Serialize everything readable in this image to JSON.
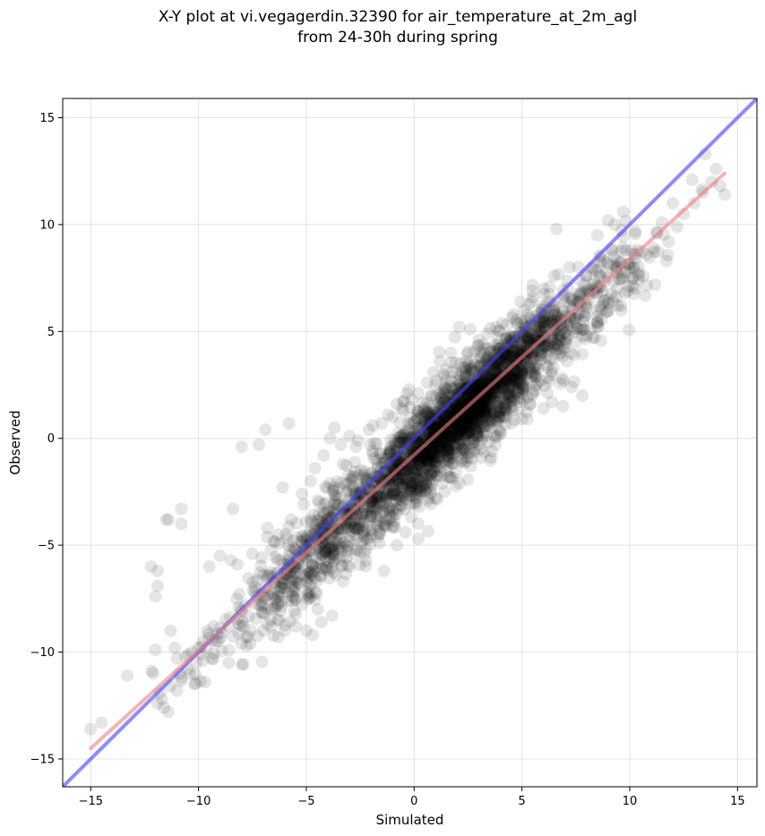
{
  "chart_data": {
    "type": "scatter",
    "title_line1": "X-Y plot at vi.vegagerdin.32390 for air_temperature_at_2m_agl",
    "title_line2": "from 24-30h during spring",
    "xlabel": "Simulated",
    "ylabel": "Observed",
    "xlim": [
      -16.3,
      15.9
    ],
    "ylim": [
      -16.3,
      15.9
    ],
    "xticks": [
      -15,
      -10,
      -5,
      0,
      5,
      10,
      15
    ],
    "yticks": [
      -15,
      -10,
      -5,
      0,
      5,
      10,
      15
    ],
    "xtick_labels": [
      "−15",
      "−10",
      "−5",
      "0",
      "5",
      "10",
      "15"
    ],
    "ytick_labels": [
      "−15",
      "−10",
      "−5",
      "0",
      "5",
      "10",
      "15"
    ],
    "grid": true,
    "point_color": "#000000",
    "point_count_approx": 3000,
    "lines": [
      {
        "kind": "identity",
        "color": "#4040ff",
        "x": [
          -16.3,
          15.9
        ],
        "y": [
          -16.3,
          15.9
        ]
      },
      {
        "kind": "regression",
        "color": "#f08080",
        "x": [
          -15.0,
          14.4
        ],
        "y": [
          -14.5,
          12.4
        ]
      }
    ],
    "points": [
      [
        -15.0,
        -13.6
      ],
      [
        -14.5,
        -13.3
      ],
      [
        -13.3,
        -11.1
      ],
      [
        -12.2,
        -6.0
      ],
      [
        -11.9,
        -6.2
      ],
      [
        -12.0,
        -7.4
      ],
      [
        -11.9,
        -6.9
      ],
      [
        -11.5,
        -3.8
      ],
      [
        -11.4,
        -3.8
      ],
      [
        -10.8,
        -3.3
      ],
      [
        -10.8,
        -4.0
      ],
      [
        -12.0,
        -9.9
      ],
      [
        -11.8,
        -11.9
      ],
      [
        -11.6,
        -12.6
      ],
      [
        -11.7,
        -12.2
      ],
      [
        -11.4,
        -12.8
      ],
      [
        -11.9,
        -12.4
      ],
      [
        -12.1,
        -11.0
      ],
      [
        -11.3,
        -11.6
      ],
      [
        -11.0,
        -10.3
      ],
      [
        -10.8,
        -11.2
      ],
      [
        -10.6,
        -10.2
      ],
      [
        -10.5,
        -10.8
      ],
      [
        -10.3,
        -10.0
      ],
      [
        -10.1,
        -10.5
      ],
      [
        -10.0,
        -9.8
      ],
      [
        -9.8,
        -9.5
      ],
      [
        -9.6,
        -9.0
      ],
      [
        -9.3,
        -8.8
      ],
      [
        -9.5,
        -6.0
      ],
      [
        -9.0,
        -5.5
      ],
      [
        -8.5,
        -5.7
      ],
      [
        -8.2,
        -5.9
      ],
      [
        -8.4,
        -3.3
      ],
      [
        -8.0,
        -0.4
      ],
      [
        -7.2,
        -0.3
      ],
      [
        -6.9,
        0.4
      ],
      [
        -5.8,
        0.7
      ],
      [
        -11.3,
        -9.0
      ],
      [
        -11.1,
        -9.8
      ],
      [
        -10.9,
        -11.0
      ],
      [
        -10.2,
        -11.5
      ],
      [
        -9.7,
        -11.4
      ],
      [
        -8.6,
        -10.5
      ],
      [
        -8.0,
        -9.6
      ],
      [
        -7.6,
        -9.6
      ],
      [
        -7.8,
        -9.3
      ],
      [
        -7.0,
        -9.0
      ],
      [
        -6.8,
        -8.7
      ],
      [
        -6.3,
        -9.3
      ],
      [
        -6.0,
        -9.0
      ],
      [
        -5.5,
        -8.8
      ],
      [
        -5.0,
        -9.0
      ],
      [
        -4.7,
        -9.2
      ],
      [
        -4.3,
        -8.6
      ],
      [
        -3.8,
        -8.3
      ],
      [
        -7.5,
        -5.4
      ],
      [
        -7.0,
        -6.4
      ],
      [
        -6.8,
        -4.2
      ],
      [
        -6.3,
        -4.5
      ],
      [
        -6.1,
        -2.3
      ],
      [
        -5.7,
        -3.8
      ],
      [
        -5.2,
        -2.6
      ],
      [
        -4.8,
        -2.0
      ],
      [
        -4.6,
        -1.4
      ],
      [
        -4.2,
        -0.8
      ],
      [
        -3.9,
        0.0
      ],
      [
        -3.7,
        0.5
      ],
      [
        -3.4,
        -0.3
      ],
      [
        -3.0,
        0.1
      ],
      [
        -2.6,
        -0.1
      ],
      [
        -1.9,
        0.6
      ],
      [
        -1.2,
        1.1
      ],
      [
        -0.8,
        1.6
      ],
      [
        -4.1,
        -5.1
      ],
      [
        -3.7,
        -5.7
      ],
      [
        -3.3,
        -6.7
      ],
      [
        -3.0,
        -6.0
      ],
      [
        -2.5,
        -5.3
      ],
      [
        -2.3,
        -5.4
      ],
      [
        -1.7,
        -4.6
      ],
      [
        -1.4,
        -6.2
      ],
      [
        -0.8,
        -5.0
      ],
      [
        -0.4,
        -4.4
      ],
      [
        0.2,
        -4.7
      ],
      [
        -1.3,
        -3.8
      ],
      [
        -0.2,
        -3.1
      ],
      [
        0.3,
        -2.3
      ],
      [
        1.0,
        -2.8
      ],
      [
        1.7,
        -1.8
      ],
      [
        2.1,
        -2.1
      ],
      [
        2.5,
        -0.9
      ],
      [
        3.1,
        -0.5
      ],
      [
        3.6,
        -0.6
      ],
      [
        4.0,
        0.2
      ],
      [
        4.5,
        0.7
      ],
      [
        5.0,
        0.9
      ],
      [
        5.4,
        1.6
      ],
      [
        6.0,
        1.4
      ],
      [
        6.4,
        1.7
      ],
      [
        6.9,
        1.5
      ],
      [
        7.3,
        2.4
      ],
      [
        7.8,
        2.0
      ],
      [
        6.3,
        3.7
      ],
      [
        6.8,
        4.0
      ],
      [
        7.5,
        4.5
      ],
      [
        8.0,
        4.8
      ],
      [
        8.5,
        5.4
      ],
      [
        9.0,
        6.5
      ],
      [
        9.4,
        7.0
      ],
      [
        9.9,
        6.9
      ],
      [
        10.2,
        8.0
      ],
      [
        10.8,
        8.6
      ],
      [
        11.1,
        8.9
      ],
      [
        11.8,
        9.2
      ],
      [
        12.2,
        9.9
      ],
      [
        12.5,
        10.5
      ],
      [
        13.0,
        11.0
      ],
      [
        13.4,
        11.5
      ],
      [
        13.8,
        12.0
      ],
      [
        14.2,
        11.8
      ],
      [
        14.4,
        11.4
      ],
      [
        13.5,
        13.3
      ],
      [
        14.0,
        12.6
      ],
      [
        12.9,
        12.1
      ],
      [
        12.0,
        11.0
      ],
      [
        11.5,
        10.1
      ],
      [
        11.7,
        8.3
      ],
      [
        10.4,
        8.8
      ],
      [
        9.7,
        10.6
      ],
      [
        9.3,
        10.0
      ],
      [
        9.0,
        10.2
      ],
      [
        8.5,
        9.5
      ],
      [
        8.3,
        8.0
      ],
      [
        8.0,
        7.6
      ],
      [
        7.7,
        7.4
      ],
      [
        7.2,
        8.0
      ],
      [
        6.6,
        9.8
      ],
      [
        6.5,
        7.6
      ],
      [
        6.0,
        7.0
      ],
      [
        5.5,
        6.6
      ],
      [
        5.1,
        6.0
      ],
      [
        4.6,
        5.8
      ],
      [
        4.3,
        5.3
      ],
      [
        3.8,
        5.2
      ],
      [
        3.4,
        4.9
      ],
      [
        3.0,
        4.6
      ],
      [
        2.6,
        5.1
      ],
      [
        2.1,
        5.2
      ],
      [
        1.7,
        4.0
      ],
      [
        1.2,
        3.6
      ],
      [
        0.9,
        3.1
      ],
      [
        0.6,
        2.6
      ],
      [
        0.2,
        2.1
      ],
      [
        -0.1,
        1.8
      ],
      [
        -0.5,
        1.3
      ],
      [
        -1.0,
        1.0
      ],
      [
        -1.5,
        0.7
      ],
      [
        -2.1,
        0.4
      ],
      [
        -2.7,
        -0.4
      ],
      [
        -3.3,
        -1.2
      ],
      [
        -3.9,
        -2.1
      ],
      [
        -4.4,
        -3.0
      ],
      [
        -5.0,
        -3.9
      ],
      [
        -5.6,
        -4.8
      ],
      [
        -6.2,
        -5.7
      ],
      [
        -6.8,
        -6.5
      ],
      [
        -7.4,
        -7.2
      ],
      [
        -8.0,
        -8.1
      ],
      [
        -8.6,
        -8.8
      ],
      [
        -9.2,
        -9.5
      ],
      [
        -9.8,
        -10.4
      ],
      [
        -10.4,
        -11.0
      ],
      [
        -11.0,
        -11.8
      ]
    ]
  }
}
